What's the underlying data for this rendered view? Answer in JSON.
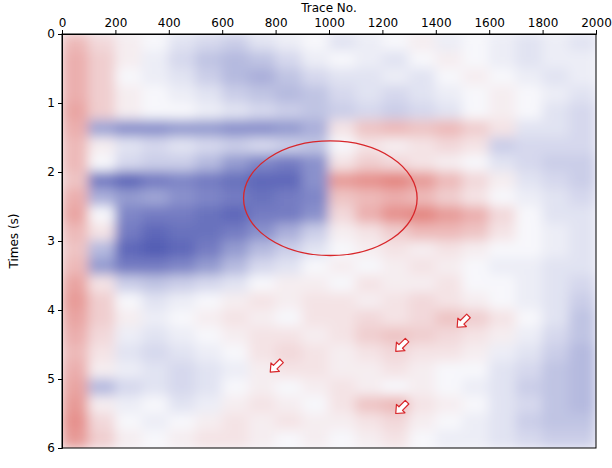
{
  "chart_data": {
    "type": "heatmap",
    "x_label": "Trace No.",
    "y_label": "Times (s)",
    "xlim": [
      0,
      2000
    ],
    "ylim": [
      0,
      6
    ],
    "xticks": [
      0,
      200,
      400,
      600,
      800,
      1000,
      1200,
      1400,
      1600,
      1800,
      2000
    ],
    "yticks": [
      0,
      1,
      2,
      3,
      4,
      5,
      6
    ],
    "zlim": [
      -1,
      1
    ],
    "x": [
      50,
      150,
      250,
      350,
      450,
      550,
      650,
      750,
      850,
      950,
      1050,
      1150,
      1250,
      1350,
      1450,
      1550,
      1650,
      1750,
      1850,
      1950
    ],
    "y": [
      0.125,
      0.375,
      0.625,
      0.875,
      1.125,
      1.375,
      1.625,
      1.875,
      2.125,
      2.375,
      2.625,
      2.875,
      3.125,
      3.375,
      3.625,
      3.875,
      4.125,
      4.375,
      4.625,
      4.875,
      5.125,
      5.375,
      5.625,
      5.875
    ],
    "values": [
      [
        0.3,
        0.15,
        0.05,
        0,
        -0.1,
        -0.15,
        -0.2,
        -0.1,
        -0.05,
        0,
        -0.1,
        -0.05,
        0,
        0.05,
        -0.05,
        0,
        -0.05,
        -0.1,
        -0.05,
        -0.1
      ],
      [
        0.35,
        0.2,
        0.05,
        -0.05,
        -0.15,
        -0.25,
        -0.3,
        -0.25,
        -0.15,
        -0.05,
        0,
        -0.05,
        -0.1,
        0,
        0.05,
        0,
        -0.05,
        -0.1,
        -0.05,
        -0.05
      ],
      [
        0.35,
        0.2,
        0,
        -0.05,
        -0.1,
        -0.2,
        -0.3,
        -0.35,
        -0.25,
        -0.15,
        -0.1,
        -0.1,
        -0.05,
        -0.1,
        0,
        0.05,
        0,
        -0.05,
        -0.1,
        -0.05
      ],
      [
        0.35,
        0.2,
        0.05,
        0,
        -0.05,
        -0.1,
        -0.2,
        -0.25,
        -0.3,
        -0.25,
        -0.15,
        -0.1,
        -0.15,
        -0.1,
        -0.05,
        0,
        0.05,
        0,
        -0.05,
        -0.1
      ],
      [
        0.4,
        0.2,
        0.05,
        0,
        0,
        -0.05,
        -0.1,
        -0.15,
        -0.2,
        -0.25,
        -0.2,
        -0.15,
        -0.2,
        -0.15,
        -0.1,
        0,
        0.05,
        0,
        -0.1,
        -0.15
      ],
      [
        0.35,
        -0.4,
        -0.5,
        -0.5,
        -0.45,
        -0.45,
        -0.5,
        -0.5,
        -0.45,
        -0.35,
        0.1,
        0.25,
        0.3,
        0.25,
        0.3,
        0.2,
        0.1,
        -0.1,
        -0.1,
        -0.15
      ],
      [
        0.3,
        0.05,
        -0.1,
        -0.15,
        -0.1,
        -0.15,
        -0.2,
        -0.15,
        -0.2,
        -0.25,
        0,
        0.1,
        0.05,
        0.1,
        0.15,
        0.1,
        -0.2,
        -0.15,
        -0.15,
        -0.15
      ],
      [
        0.3,
        0,
        -0.15,
        -0.2,
        -0.2,
        -0.3,
        -0.45,
        -0.55,
        -0.6,
        -0.5,
        0.1,
        0.2,
        0.15,
        0.1,
        0.05,
        0,
        -0.1,
        -0.15,
        -0.2,
        -0.2
      ],
      [
        0.25,
        -0.6,
        -0.7,
        -0.6,
        -0.55,
        -0.6,
        -0.65,
        -0.7,
        -0.7,
        -0.5,
        0.45,
        0.5,
        0.55,
        0.45,
        0.3,
        0.15,
        0.05,
        -0.1,
        -0.15,
        -0.2
      ],
      [
        0.35,
        -0.35,
        -0.45,
        -0.4,
        -0.5,
        -0.55,
        -0.6,
        -0.65,
        -0.6,
        -0.55,
        0.25,
        0.3,
        0.35,
        0.3,
        0.2,
        0.1,
        0,
        -0.05,
        -0.1,
        -0.15
      ],
      [
        0.4,
        0,
        -0.55,
        -0.6,
        -0.6,
        -0.65,
        -0.7,
        -0.6,
        -0.6,
        -0.5,
        0.15,
        0.35,
        0.5,
        0.55,
        0.45,
        0.35,
        0.15,
        0,
        -0.1,
        -0.1
      ],
      [
        0.3,
        0.1,
        -0.6,
        -0.7,
        -0.65,
        -0.65,
        -0.6,
        -0.5,
        -0.35,
        -0.2,
        0.05,
        0.1,
        0.2,
        0.3,
        0.3,
        0.25,
        0.1,
        0,
        -0.05,
        -0.1
      ],
      [
        0.25,
        -0.3,
        -0.7,
        -0.75,
        -0.7,
        -0.6,
        -0.45,
        -0.3,
        -0.2,
        -0.1,
        0,
        0.05,
        0.1,
        0.05,
        0.1,
        0.05,
        0,
        0,
        -0.05,
        -0.1
      ],
      [
        0.3,
        -0.45,
        -0.6,
        -0.6,
        -0.55,
        -0.45,
        -0.3,
        -0.15,
        -0.1,
        0,
        0.05,
        0,
        0.05,
        0.1,
        0.05,
        0,
        -0.05,
        -0.05,
        -0.1,
        -0.1
      ],
      [
        0.4,
        0.1,
        -0.2,
        -0.25,
        -0.2,
        -0.15,
        -0.1,
        0,
        0.05,
        0.05,
        0,
        0.1,
        0.05,
        0.05,
        0.1,
        0,
        0,
        -0.05,
        -0.1,
        -0.15
      ],
      [
        0.45,
        0.2,
        0,
        -0.1,
        -0.05,
        0,
        0.05,
        0.1,
        0.05,
        0.1,
        0.1,
        0.05,
        0.1,
        0.15,
        0.1,
        0.05,
        0,
        -0.05,
        -0.1,
        -0.2
      ],
      [
        0.4,
        0.2,
        0.05,
        -0.05,
        0,
        0.05,
        0.1,
        0.05,
        0,
        0.1,
        0.1,
        0.15,
        0.1,
        0.15,
        0.25,
        0.2,
        0.1,
        0,
        -0.1,
        -0.25
      ],
      [
        0.35,
        0.15,
        -0.05,
        -0.1,
        -0.05,
        0,
        0.05,
        0.1,
        0.1,
        0.05,
        0.1,
        0.2,
        0.25,
        0.2,
        0.15,
        0.1,
        0.05,
        -0.05,
        -0.15,
        -0.25
      ],
      [
        0.3,
        0.1,
        -0.1,
        -0.15,
        -0.1,
        -0.05,
        0,
        0.1,
        0.15,
        0.1,
        0.05,
        0.1,
        0.15,
        0.1,
        0.1,
        0.05,
        -0.05,
        -0.1,
        -0.2,
        -0.3
      ],
      [
        0.35,
        0.05,
        -0.05,
        -0.1,
        -0.15,
        -0.1,
        -0.05,
        0.05,
        0.1,
        0.1,
        0.05,
        0.05,
        0.1,
        0.05,
        0,
        0,
        -0.1,
        -0.15,
        -0.25,
        -0.3
      ],
      [
        0.4,
        -0.3,
        -0.15,
        -0.1,
        -0.15,
        -0.1,
        0,
        0.05,
        0,
        0.05,
        0.1,
        0.05,
        0,
        0.05,
        0,
        -0.05,
        -0.1,
        -0.2,
        -0.25,
        -0.3
      ],
      [
        0.45,
        0.05,
        -0.05,
        0,
        -0.1,
        -0.05,
        0.05,
        0.1,
        0.05,
        0,
        0.1,
        0.25,
        0.3,
        0.1,
        0.05,
        0,
        -0.1,
        -0.15,
        -0.25,
        -0.3
      ],
      [
        0.5,
        0.15,
        0,
        -0.05,
        0,
        0.05,
        0.1,
        0.05,
        0.1,
        0.05,
        0.05,
        0.1,
        0.15,
        0.05,
        0,
        -0.05,
        -0.1,
        -0.2,
        -0.25,
        -0.25
      ],
      [
        0.45,
        0.2,
        0.05,
        0,
        0.05,
        0.1,
        0.1,
        0.05,
        0,
        0.05,
        0,
        0.05,
        0.1,
        0,
        -0.05,
        -0.05,
        -0.1,
        -0.15,
        -0.2,
        -0.2
      ]
    ],
    "annotations": [
      {
        "shape": "ellipse",
        "x": 1005,
        "y": 2.38,
        "rx": 325,
        "ry": 0.83
      },
      {
        "shape": "arrow",
        "x": 1480,
        "y": 4.25
      },
      {
        "shape": "arrow",
        "x": 1250,
        "y": 4.6
      },
      {
        "shape": "arrow",
        "x": 780,
        "y": 4.9
      },
      {
        "shape": "arrow",
        "x": 1250,
        "y": 5.5
      }
    ]
  }
}
